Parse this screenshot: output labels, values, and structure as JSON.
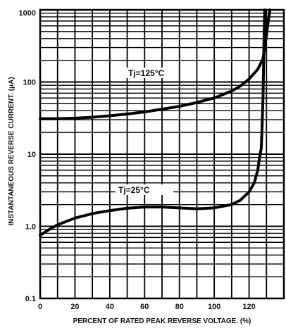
{
  "chart_data": {
    "type": "line",
    "xlabel": "PERCENT OF RATED PEAK REVERSE VOLTAGE. (%)",
    "ylabel": "INSTANTANEOUS REVERSE CURRENT. (μA)",
    "xlim": [
      0,
      140
    ],
    "ylim": [
      0.1,
      1000
    ],
    "yscale": "log",
    "grid": true,
    "x_ticks": [
      "0",
      "20",
      "40",
      "60",
      "80",
      "100",
      "120"
    ],
    "y_ticks": [
      "0.1",
      "1.0",
      "10",
      "100",
      "1000"
    ],
    "series": [
      {
        "name": "Tj=125°C",
        "points": [
          [
            0,
            31
          ],
          [
            10,
            31
          ],
          [
            20,
            31.5
          ],
          [
            30,
            32.5
          ],
          [
            40,
            34
          ],
          [
            50,
            36
          ],
          [
            60,
            38.5
          ],
          [
            70,
            42
          ],
          [
            80,
            46
          ],
          [
            90,
            52
          ],
          [
            100,
            60
          ],
          [
            110,
            75
          ],
          [
            115,
            88
          ],
          [
            120,
            110
          ],
          [
            125,
            150
          ],
          [
            128,
            210
          ],
          [
            129,
            300
          ],
          [
            130,
            450
          ],
          [
            131,
            700
          ],
          [
            132,
            1000
          ]
        ]
      },
      {
        "name": "Tj=25°C",
        "points": [
          [
            0,
            0.75
          ],
          [
            5,
            0.9
          ],
          [
            10,
            1.05
          ],
          [
            20,
            1.3
          ],
          [
            30,
            1.5
          ],
          [
            40,
            1.65
          ],
          [
            50,
            1.78
          ],
          [
            60,
            1.85
          ],
          [
            70,
            1.85
          ],
          [
            80,
            1.8
          ],
          [
            90,
            1.75
          ],
          [
            100,
            1.8
          ],
          [
            110,
            2.0
          ],
          [
            115,
            2.3
          ],
          [
            120,
            3.0
          ],
          [
            123,
            4.0
          ],
          [
            125,
            6.0
          ],
          [
            126,
            9.0
          ],
          [
            127,
            12
          ],
          [
            127.5,
            25
          ],
          [
            128,
            60
          ],
          [
            128.3,
            150
          ],
          [
            128.6,
            400
          ],
          [
            129,
            1000
          ]
        ]
      }
    ]
  }
}
